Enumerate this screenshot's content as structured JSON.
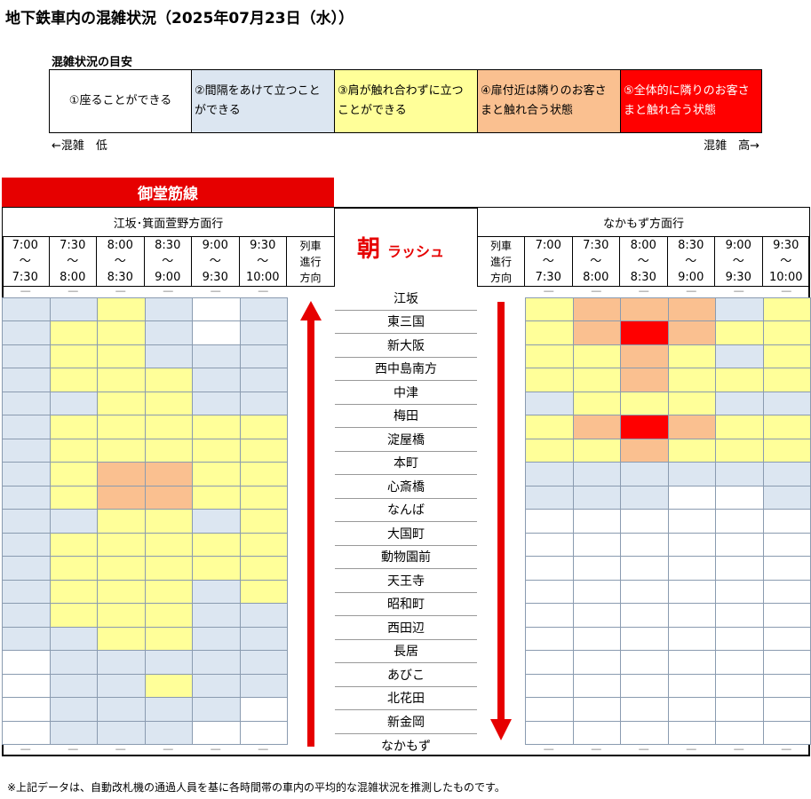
{
  "title": "地下鉄車内の混雑状況（2025年07月23日（水））",
  "legend": {
    "title": "混雑状況の目安",
    "levels": [
      {
        "label": "①座ることができる",
        "color": "#ffffff"
      },
      {
        "label": "②間隔をあけて立つことができる",
        "color": "#dce6f1"
      },
      {
        "label": "③肩が触れ合わずに立つことができる",
        "color": "#ffff99"
      },
      {
        "label": "④扉付近は隣りのお客さまと触れ合う状態",
        "color": "#fac090"
      },
      {
        "label": "⑤全体的に隣りのお客さまと触れ合う状態",
        "color": "#ff0000"
      }
    ],
    "low_label": "←混雑　低",
    "high_label": "混雑　高→"
  },
  "line_name": "御堂筋線",
  "rush": {
    "main": "朝",
    "sub": "ラッシュ"
  },
  "left_direction": "江坂･箕面萱野方面行",
  "right_direction": "なかもず方面行",
  "direction_header": [
    "列車",
    "進行",
    "方向"
  ],
  "time_slots": [
    [
      "7:00",
      "～",
      "7:30"
    ],
    [
      "7:30",
      "～",
      "8:00"
    ],
    [
      "8:00",
      "～",
      "8:30"
    ],
    [
      "8:30",
      "～",
      "9:00"
    ],
    [
      "9:00",
      "～",
      "9:30"
    ],
    [
      "9:30",
      "～",
      "10:00"
    ]
  ],
  "dash": "―",
  "stations": [
    "江坂",
    "東三国",
    "新大阪",
    "西中島南方",
    "中津",
    "梅田",
    "淀屋橋",
    "本町",
    "心斎橋",
    "なんば",
    "大国町",
    "動物園前",
    "天王寺",
    "昭和町",
    "西田辺",
    "長居",
    "あびこ",
    "北花田",
    "新金岡",
    "なかもず"
  ],
  "left_grid": [
    [
      2,
      2,
      3,
      2,
      1,
      2
    ],
    [
      2,
      3,
      3,
      2,
      1,
      2
    ],
    [
      2,
      3,
      3,
      2,
      2,
      2
    ],
    [
      2,
      3,
      3,
      3,
      2,
      2
    ],
    [
      2,
      2,
      3,
      3,
      2,
      2
    ],
    [
      2,
      3,
      3,
      3,
      3,
      3
    ],
    [
      2,
      3,
      3,
      3,
      3,
      3
    ],
    [
      2,
      3,
      4,
      4,
      3,
      3
    ],
    [
      2,
      3,
      4,
      4,
      3,
      3
    ],
    [
      2,
      2,
      3,
      3,
      2,
      3
    ],
    [
      2,
      3,
      3,
      3,
      3,
      3
    ],
    [
      2,
      3,
      3,
      3,
      3,
      3
    ],
    [
      2,
      3,
      3,
      3,
      2,
      3
    ],
    [
      2,
      3,
      3,
      3,
      2,
      2
    ],
    [
      2,
      2,
      3,
      3,
      2,
      2
    ],
    [
      1,
      2,
      2,
      2,
      2,
      2
    ],
    [
      1,
      2,
      2,
      3,
      2,
      2
    ],
    [
      1,
      2,
      2,
      2,
      2,
      1
    ],
    [
      1,
      2,
      2,
      2,
      1,
      1
    ]
  ],
  "right_grid": [
    [
      3,
      4,
      4,
      4,
      2,
      3
    ],
    [
      3,
      4,
      5,
      4,
      3,
      3
    ],
    [
      3,
      3,
      4,
      3,
      2,
      3
    ],
    [
      3,
      3,
      4,
      3,
      3,
      3
    ],
    [
      2,
      3,
      3,
      3,
      2,
      2
    ],
    [
      3,
      4,
      5,
      4,
      3,
      3
    ],
    [
      3,
      3,
      4,
      3,
      3,
      3
    ],
    [
      2,
      2,
      2,
      2,
      2,
      2
    ],
    [
      2,
      2,
      2,
      1,
      1,
      2
    ],
    [
      1,
      1,
      1,
      1,
      1,
      1
    ],
    [
      1,
      1,
      1,
      1,
      1,
      1
    ],
    [
      1,
      1,
      1,
      1,
      1,
      1
    ],
    [
      1,
      1,
      1,
      1,
      1,
      1
    ],
    [
      1,
      1,
      1,
      1,
      1,
      1
    ],
    [
      1,
      1,
      1,
      1,
      1,
      1
    ],
    [
      1,
      1,
      1,
      1,
      1,
      1
    ],
    [
      1,
      1,
      1,
      1,
      1,
      1
    ],
    [
      1,
      1,
      1,
      1,
      1,
      1
    ],
    [
      1,
      1,
      1,
      1,
      1,
      1
    ]
  ],
  "arrow_color": "#e60000",
  "footnote": "※上記データは、自動改札機の通過人員を基に各時間帯の車内の平均的な混雑状況を推測したものです。"
}
